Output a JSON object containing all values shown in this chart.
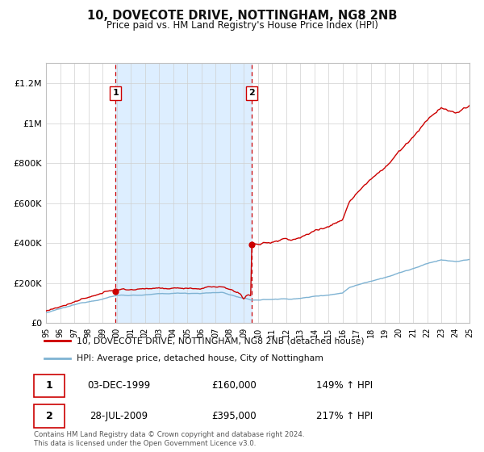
{
  "title": "10, DOVECOTE DRIVE, NOTTINGHAM, NG8 2NB",
  "subtitle": "Price paid vs. HM Land Registry's House Price Index (HPI)",
  "legend_line1": "10, DOVECOTE DRIVE, NOTTINGHAM, NG8 2NB (detached house)",
  "legend_line2": "HPI: Average price, detached house, City of Nottingham",
  "purchase1_date": "03-DEC-1999",
  "purchase1_price": 160000,
  "purchase1_label": "149% ↑ HPI",
  "purchase1_year": 1999.92,
  "purchase2_date": "28-JUL-2009",
  "purchase2_price": 395000,
  "purchase2_label": "217% ↑ HPI",
  "purchase2_year": 2009.58,
  "footer": "Contains HM Land Registry data © Crown copyright and database right 2024.\nThis data is licensed under the Open Government Licence v3.0.",
  "price_color": "#cc0000",
  "hpi_color": "#7fb3d3",
  "shading_color": "#ddeeff",
  "background_color": "#ffffff",
  "ylim_max": 1300000,
  "xmin": 1995,
  "xmax": 2025,
  "yticks": [
    0,
    200000,
    400000,
    600000,
    800000,
    1000000,
    1200000
  ],
  "ytick_labels": [
    "£0",
    "£200K",
    "£400K",
    "£600K",
    "£800K",
    "£1M",
    "£1.2M"
  ]
}
